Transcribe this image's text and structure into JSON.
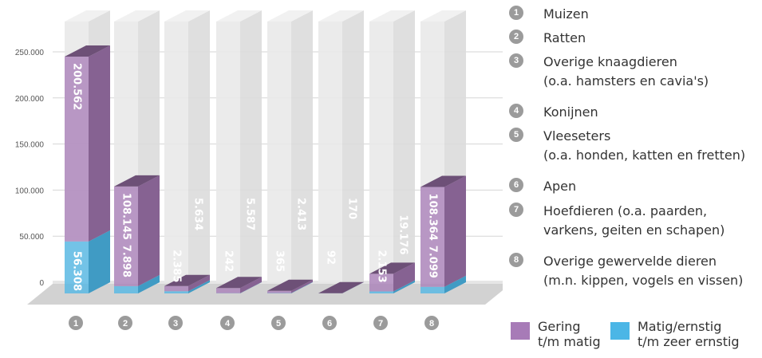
{
  "chart_data": {
    "type": "bar",
    "stacked": true,
    "categories": [
      "1",
      "2",
      "3",
      "4",
      "5",
      "6",
      "7",
      "8"
    ],
    "series": [
      {
        "name": "Matig/ernstig t/m zeer ernstig",
        "color": "#4bb6e6",
        "values": [
          56308,
          7898,
          2385,
          242,
          365,
          92,
          2153,
          7099
        ]
      },
      {
        "name": "Gering t/m matig",
        "color": "#a77bb7",
        "values": [
          200562,
          108145,
          5634,
          5587,
          2413,
          170,
          19176,
          108364
        ]
      }
    ],
    "value_labels": [
      [
        "56.308",
        "7.898",
        "2.385",
        "242",
        "365",
        "92",
        "2.153",
        "7.099"
      ],
      [
        "200.562",
        "108.145",
        "5.634",
        "5.587",
        "2.413",
        "170",
        "19.176",
        "108.364"
      ]
    ],
    "y_ticks": [
      {
        "value": 0,
        "label": "0"
      },
      {
        "value": 50000,
        "label": "50.000"
      },
      {
        "value": 100000,
        "label": "100.000"
      },
      {
        "value": 150000,
        "label": "150.000"
      },
      {
        "value": 200000,
        "label": "200.000"
      },
      {
        "value": 250000,
        "label": "250.000"
      }
    ],
    "ylim": [
      0,
      250000
    ],
    "grid": true,
    "legend_position": "right",
    "title": "",
    "xlabel": "",
    "ylabel": ""
  },
  "legend": {
    "items": [
      {
        "num": "1",
        "lines": [
          "Muizen"
        ]
      },
      {
        "num": "2",
        "lines": [
          "Ratten"
        ]
      },
      {
        "num": "3",
        "lines": [
          "Overige knaagdieren",
          "(o.a. hamsters en cavia's)"
        ]
      },
      {
        "num": "4",
        "lines": [
          "Konijnen"
        ]
      },
      {
        "num": "5",
        "lines": [
          "Vleeseters",
          "(o.a. honden, katten en fretten)"
        ]
      },
      {
        "num": "6",
        "lines": [
          "Apen"
        ]
      },
      {
        "num": "7",
        "lines": [
          "Hoefdieren (o.a. paarden,",
          "varkens, geiten en schapen)"
        ]
      },
      {
        "num": "8",
        "lines": [
          "Overige gewervelde dieren",
          "(m.n. kippen, vogels en vissen)"
        ]
      }
    ],
    "series": [
      {
        "color": "#a77bb7",
        "lines": [
          "Gering",
          "t/m matig"
        ]
      },
      {
        "color": "#4bb6e6",
        "lines": [
          "Matig/ernstig",
          "t/m zeer ernstig"
        ]
      }
    ]
  }
}
